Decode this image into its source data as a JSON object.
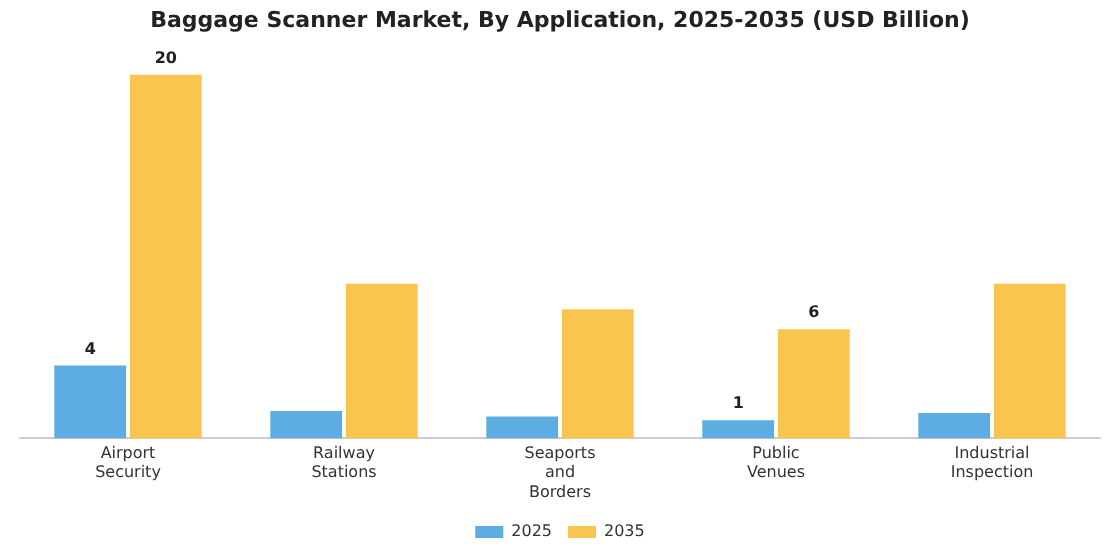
{
  "chart_data": {
    "type": "bar",
    "title": "Baggage Scanner Market, By Application, 2025-2035 (USD Billion)",
    "categories": [
      "Airport Security",
      "Railway Stations",
      "Seaports and Borders",
      "Public Venues",
      "Industrial Inspection"
    ],
    "series": [
      {
        "name": "2025",
        "color": "#5dade2",
        "values": [
          4,
          1.5,
          1.2,
          1,
          1.4
        ],
        "value_labels": [
          "4",
          null,
          null,
          "1",
          null
        ]
      },
      {
        "name": "2035",
        "color": "#f9c54e",
        "values": [
          20,
          8.5,
          7.1,
          6,
          8.5
        ],
        "value_labels": [
          "20",
          null,
          null,
          "6",
          null
        ]
      }
    ],
    "legend": "bottom",
    "grid": false,
    "tick_labels": "x"
  }
}
